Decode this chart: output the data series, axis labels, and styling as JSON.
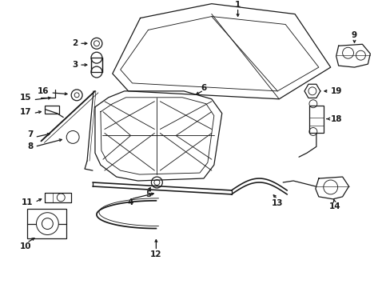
{
  "bg_color": "#ffffff",
  "line_color": "#1a1a1a",
  "lw": 0.9,
  "fs": 7.5,
  "fig_w": 4.89,
  "fig_h": 3.6,
  "dpi": 100
}
